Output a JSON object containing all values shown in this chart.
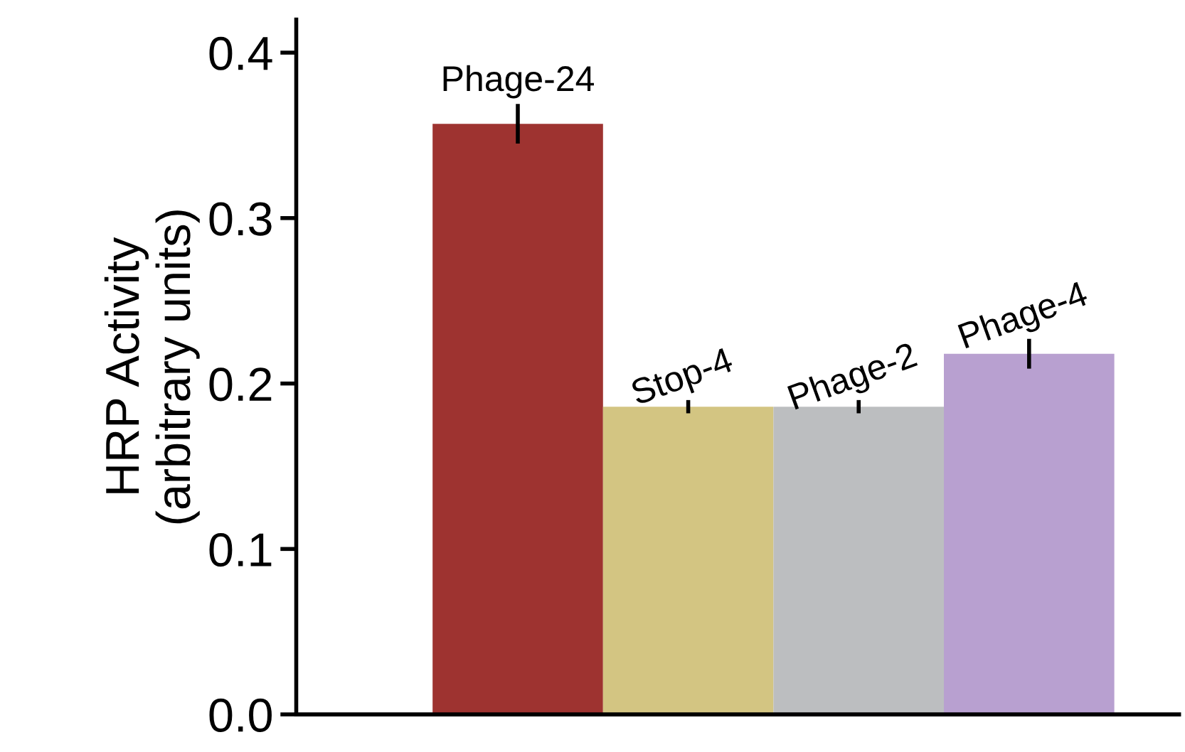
{
  "chart_data": {
    "type": "bar",
    "ylabel": "HRP Activity\n(arbitrary units)",
    "categories": [
      "Phage-24",
      "Stop-4",
      "Phage-2",
      "Phage-4"
    ],
    "values": [
      0.357,
      0.186,
      0.186,
      0.218
    ],
    "errors": [
      0.012,
      0.004,
      0.004,
      0.009
    ],
    "colors": [
      "#9e3330",
      "#d3c582",
      "#bcbec0",
      "#b8a0d0"
    ],
    "ylim": [
      0,
      0.42
    ],
    "yticks": [
      {
        "value": 0,
        "label": "0.0"
      },
      0.1,
      0.2,
      0.3,
      0.4
    ],
    "grid": false,
    "legend": false
  }
}
